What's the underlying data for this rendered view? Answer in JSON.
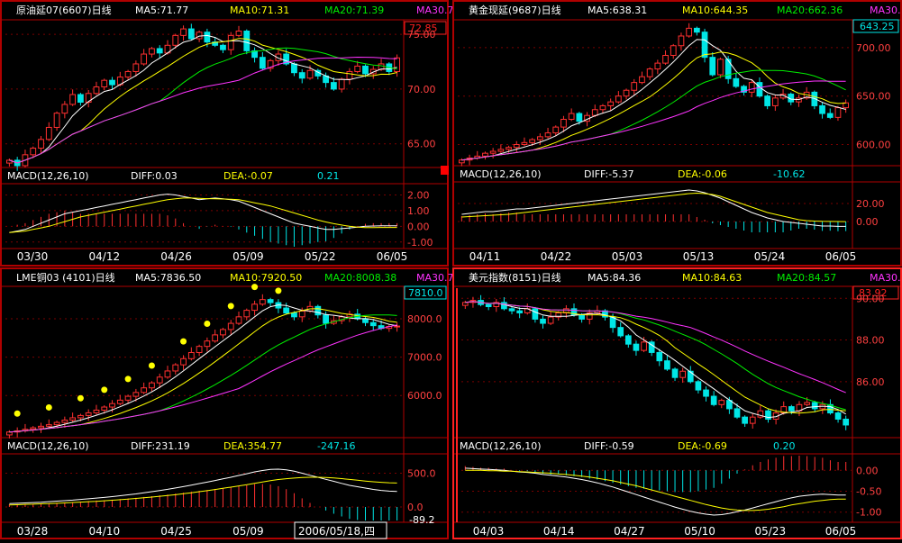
{
  "colors": {
    "bg": "#000000",
    "frame": "#aa0000",
    "grid": "#7a0000",
    "divider": "#b00000",
    "up": "#ff3030",
    "down": "#00e6e6",
    "ma5": "#ffffff",
    "ma10": "#ffff00",
    "ma20": "#00ee00",
    "ma30": "#ff33ff",
    "diff": "#ffffff",
    "dea": "#ffff00",
    "axis_text": "#ff4040",
    "title_text": "#ffffff",
    "price_box": "#ff2020",
    "dots": "#ffff00"
  },
  "status_box": "2006/05/18,四",
  "panels": [
    {
      "title": "原油延07(6607)日线",
      "ma5": "MA5:71.77",
      "ma10": "MA10:71.31",
      "ma20": "MA20:71.39",
      "ma30": "MA30.7",
      "macd": "MACD(12,26,10)",
      "diff": "DIFF:0.03",
      "dea": "DEA:-0.07",
      "macd_val": "0.21",
      "current_price": "72.85",
      "price_labels": [
        "75.00",
        "70.00",
        "65.00"
      ],
      "macd_labels": [
        "2.00",
        "1.00",
        "0.00",
        "-1.00"
      ],
      "dates": [
        "03/30",
        "04/12",
        "04/26",
        "05/09",
        "05/22",
        "06/05"
      ],
      "chart_data": {
        "type": "candlestick",
        "ylim": [
          63,
          76
        ],
        "last_close": 72.85,
        "ticks": [
          75,
          70,
          65
        ],
        "macd_ylim": [
          -1.3,
          2.6
        ],
        "macd_ticks": [
          2,
          1,
          0,
          -1
        ],
        "closes": [
          63.5,
          63.0,
          64.0,
          64.6,
          65.4,
          66.5,
          67.8,
          68.6,
          69.5,
          68.8,
          69.6,
          70.2,
          70.8,
          70.4,
          71.1,
          71.6,
          72.3,
          73.2,
          73.7,
          73.3,
          74.0,
          74.9,
          75.5,
          74.6,
          75.2,
          74.3,
          74.0,
          73.6,
          74.9,
          75.3,
          73.5,
          72.9,
          71.9,
          72.6,
          73.2,
          72.3,
          71.5,
          71.0,
          71.7,
          71.2,
          70.6,
          70.0,
          70.9,
          71.6,
          72.1,
          71.4,
          71.8,
          72.3,
          71.6,
          72.85
        ],
        "diff": [
          -0.4,
          -0.3,
          -0.2,
          0.0,
          0.2,
          0.4,
          0.6,
          0.8,
          0.9,
          1.0,
          1.1,
          1.2,
          1.3,
          1.4,
          1.5,
          1.6,
          1.7,
          1.8,
          1.9,
          2.0,
          2.05,
          2.0,
          1.9,
          1.8,
          1.7,
          1.75,
          1.8,
          1.75,
          1.7,
          1.6,
          1.4,
          1.2,
          1.0,
          0.8,
          0.6,
          0.4,
          0.2,
          0.1,
          0.0,
          -0.1,
          -0.2,
          -0.2,
          -0.15,
          -0.1,
          -0.05,
          0.0,
          0.02,
          0.03,
          0.03,
          0.03
        ],
        "dea": [
          -0.4,
          -0.35,
          -0.3,
          -0.2,
          -0.1,
          0.0,
          0.15,
          0.3,
          0.45,
          0.6,
          0.7,
          0.8,
          0.9,
          1.0,
          1.1,
          1.2,
          1.3,
          1.4,
          1.5,
          1.6,
          1.7,
          1.75,
          1.8,
          1.8,
          1.78,
          1.76,
          1.75,
          1.74,
          1.72,
          1.7,
          1.6,
          1.5,
          1.4,
          1.3,
          1.15,
          1.0,
          0.85,
          0.7,
          0.55,
          0.4,
          0.28,
          0.17,
          0.08,
          0.0,
          -0.05,
          -0.08,
          -0.08,
          -0.07,
          -0.07,
          -0.07
        ]
      }
    },
    {
      "title": "黄金现延(9687)日线",
      "ma5": "MA5:638.31",
      "ma10": "MA10:644.35",
      "ma20": "MA20:662.36",
      "ma30": "MA30.",
      "macd": "MACD(12,26,10)",
      "diff": "DIFF:-5.37",
      "dea": "DEA:-0.06",
      "macd_val": "-10.62",
      "current_price": "643.25",
      "price_labels": [
        "700.00",
        "650.00",
        "600.00"
      ],
      "macd_labels": [
        "20.00",
        "0.00"
      ],
      "dates": [
        "04/11",
        "04/22",
        "05/03",
        "05/13",
        "05/24",
        "06/05"
      ],
      "chart_data": {
        "type": "candlestick",
        "ylim": [
          580,
          725
        ],
        "last_close": 643.25,
        "ticks": [
          700,
          650,
          600
        ],
        "macd_ylim": [
          -28,
          42
        ],
        "macd_ticks": [
          20,
          0
        ],
        "closes": [
          584,
          586,
          588,
          591,
          593,
          595,
          597,
          600,
          602,
          605,
          608,
          612,
          618,
          626,
          632,
          624,
          630,
          636,
          640,
          644,
          650,
          656,
          664,
          670,
          678,
          684,
          692,
          702,
          712,
          720,
          716,
          690,
          672,
          688,
          668,
          660,
          654,
          664,
          650,
          640,
          648,
          652,
          644,
          648,
          654,
          640,
          632,
          628,
          638,
          643
        ],
        "diff": [
          8,
          9,
          10,
          11,
          11,
          12,
          13,
          14,
          14,
          15,
          16,
          17,
          18,
          19,
          20,
          21,
          22,
          23,
          24,
          25,
          26,
          27,
          28,
          29,
          30,
          31,
          32,
          33,
          34,
          35,
          34,
          32,
          29,
          26,
          22,
          18,
          14,
          10,
          7,
          4,
          2,
          0,
          -1,
          -2,
          -3,
          -4,
          -5,
          -5,
          -5.4,
          -5.37
        ],
        "dea": [
          5,
          5.5,
          6,
          6.5,
          7,
          7.5,
          8,
          9,
          10,
          11,
          12,
          13,
          14,
          15,
          16,
          17,
          18,
          19,
          20,
          21,
          22,
          23,
          24,
          25,
          26,
          27,
          28,
          29,
          30,
          31,
          31.5,
          31,
          30,
          28,
          25,
          22,
          19,
          16,
          13,
          10,
          8,
          6,
          4,
          2,
          1,
          0.5,
          0.2,
          0.1,
          0,
          -0.06
        ]
      }
    },
    {
      "title": "LME铜03 (4101)日线",
      "ma5": "MA5:7836.50",
      "ma10": "MA10:7920.50",
      "ma20": "MA20:8008.38",
      "ma30": "MA30.7",
      "macd": "MACD(12,26,10)",
      "diff": "DIFF:231.19",
      "dea": "DEA:354.77",
      "macd_val": "-247.16",
      "current_price": "7810.0",
      "price_labels": [
        "8000.0",
        "7000.0",
        "6000.0"
      ],
      "macd_labels": [
        "500.0",
        "0.0"
      ],
      "macd_corner": "-89.2",
      "dates": [
        "03/28",
        "04/10",
        "04/25",
        "05/09"
      ],
      "chart_data": {
        "type": "candlestick",
        "ylim": [
          4950,
          8750
        ],
        "last_close": 7810,
        "ticks": [
          8000,
          7000,
          6000
        ],
        "macd_ylim": [
          -200,
          760
        ],
        "macd_ticks": [
          500,
          0
        ],
        "closes": [
          5050,
          5080,
          5120,
          5160,
          5200,
          5240,
          5300,
          5360,
          5420,
          5480,
          5550,
          5620,
          5700,
          5790,
          5880,
          5980,
          6080,
          6200,
          6330,
          6480,
          6640,
          6800,
          6960,
          7120,
          7280,
          7420,
          7580,
          7720,
          7880,
          8050,
          8220,
          8380,
          8500,
          8420,
          8280,
          8150,
          8050,
          8200,
          8320,
          8100,
          7880,
          7950,
          8050,
          8120,
          8000,
          7900,
          7820,
          7750,
          7800,
          7810
        ],
        "diff": [
          50,
          55,
          60,
          65,
          70,
          78,
          86,
          94,
          102,
          112,
          122,
          132,
          142,
          154,
          166,
          180,
          194,
          210,
          226,
          244,
          262,
          282,
          302,
          324,
          346,
          368,
          392,
          416,
          440,
          466,
          492,
          520,
          540,
          556,
          560,
          550,
          530,
          500,
          470,
          440,
          410,
          380,
          350,
          320,
          300,
          280,
          260,
          245,
          235,
          231
        ],
        "dea": [
          30,
          34,
          38,
          42,
          46,
          50,
          55,
          60,
          66,
          72,
          78,
          84,
          92,
          100,
          108,
          116,
          126,
          136,
          146,
          158,
          170,
          182,
          196,
          210,
          226,
          242,
          258,
          276,
          294,
          312,
          330,
          350,
          370,
          390,
          406,
          418,
          428,
          436,
          440,
          440,
          436,
          430,
          420,
          408,
          396,
          384,
          374,
          365,
          358,
          355
        ]
      }
    },
    {
      "title": "美元指数(8151)日线",
      "ma5": "MA5:84.36",
      "ma10": "MA10:84.63",
      "ma20": "MA20:84.57",
      "ma30": "MA30.",
      "macd": "MACD(12,26,10)",
      "diff": "DIFF:-0.59",
      "dea": "DEA:-0.69",
      "macd_val": "0.20",
      "current_price": "83.92",
      "price_labels": [
        "90.00",
        "88.00",
        "86.00"
      ],
      "macd_labels": [
        "0.00",
        "-0.50",
        "-1.00"
      ],
      "dates": [
        "04/03",
        "04/14",
        "04/27",
        "05/10",
        "05/23",
        "06/05"
      ],
      "chart_data": {
        "type": "candlestick",
        "ylim": [
          83.4,
          90.4
        ],
        "last_close": 83.92,
        "ticks": [
          90,
          88,
          86
        ],
        "macd_ylim": [
          -1.2,
          0.35
        ],
        "macd_ticks": [
          0,
          -0.5,
          -1
        ],
        "closes": [
          89.8,
          89.9,
          89.7,
          89.6,
          89.8,
          89.5,
          89.4,
          89.3,
          89.5,
          89.0,
          88.8,
          89.1,
          89.3,
          89.5,
          89.2,
          89.0,
          89.3,
          89.4,
          89.1,
          88.6,
          88.2,
          87.8,
          87.5,
          87.9,
          87.4,
          87.0,
          86.6,
          86.2,
          86.5,
          86.0,
          85.6,
          85.3,
          84.9,
          85.1,
          84.7,
          84.3,
          84.0,
          84.3,
          84.6,
          84.2,
          84.5,
          84.8,
          84.6,
          84.9,
          85.0,
          84.7,
          84.9,
          84.5,
          84.2,
          83.92
        ],
        "diff": [
          0.05,
          0.04,
          0.03,
          0.02,
          0.01,
          0.0,
          -0.02,
          -0.04,
          -0.05,
          -0.07,
          -0.1,
          -0.12,
          -0.14,
          -0.16,
          -0.19,
          -0.22,
          -0.26,
          -0.3,
          -0.35,
          -0.4,
          -0.46,
          -0.52,
          -0.58,
          -0.64,
          -0.7,
          -0.76,
          -0.82,
          -0.88,
          -0.93,
          -0.98,
          -1.02,
          -1.05,
          -1.07,
          -1.06,
          -1.03,
          -0.99,
          -0.95,
          -0.9,
          -0.85,
          -0.8,
          -0.75,
          -0.7,
          -0.66,
          -0.62,
          -0.6,
          -0.58,
          -0.57,
          -0.58,
          -0.59,
          -0.59
        ],
        "dea": [
          0.0,
          0.0,
          0.0,
          -0.01,
          -0.01,
          -0.02,
          -0.02,
          -0.03,
          -0.04,
          -0.05,
          -0.06,
          -0.07,
          -0.09,
          -0.1,
          -0.12,
          -0.14,
          -0.16,
          -0.19,
          -0.22,
          -0.25,
          -0.29,
          -0.33,
          -0.37,
          -0.42,
          -0.47,
          -0.52,
          -0.57,
          -0.62,
          -0.67,
          -0.72,
          -0.77,
          -0.82,
          -0.86,
          -0.9,
          -0.93,
          -0.95,
          -0.96,
          -0.96,
          -0.95,
          -0.93,
          -0.9,
          -0.87,
          -0.83,
          -0.8,
          -0.77,
          -0.74,
          -0.72,
          -0.7,
          -0.69,
          -0.69
        ]
      }
    }
  ]
}
